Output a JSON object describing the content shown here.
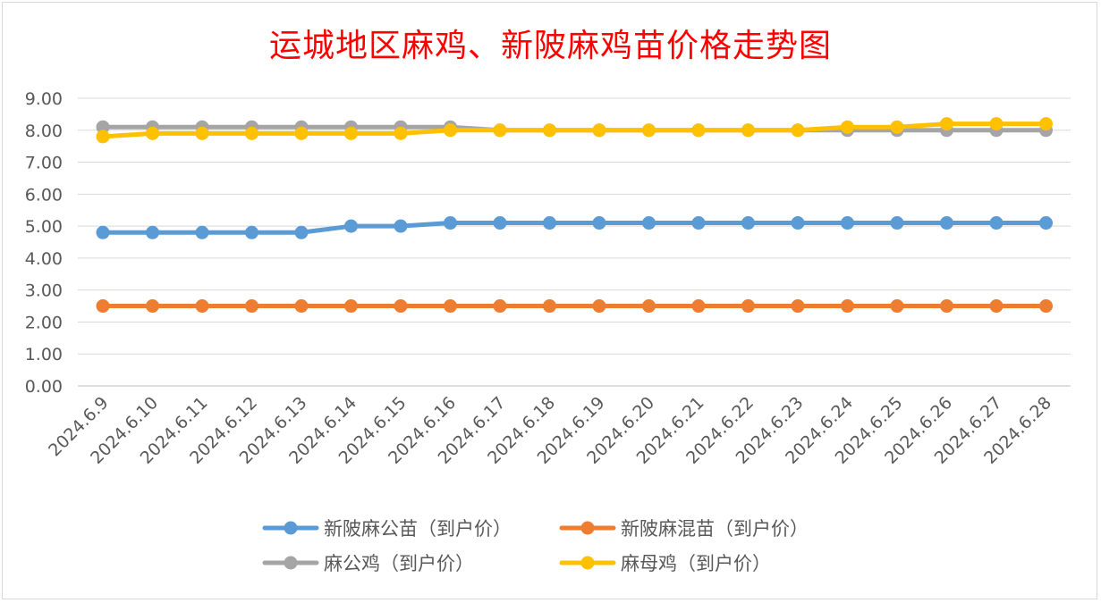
{
  "chart_data": {
    "type": "line",
    "title": "运城地区麻鸡、新陂麻鸡苗价格走势图",
    "xlabel": "",
    "ylabel": "",
    "ylim": [
      0,
      9
    ],
    "yticks": [
      "0.00",
      "1.00",
      "2.00",
      "3.00",
      "4.00",
      "5.00",
      "6.00",
      "7.00",
      "8.00",
      "9.00"
    ],
    "grid": true,
    "legend_position": "bottom",
    "categories": [
      "2024.6.9",
      "2024.6.10",
      "2024.6.11",
      "2024.6.12",
      "2024.6.13",
      "2024.6.14",
      "2024.6.15",
      "2024.6.16",
      "2024.6.17",
      "2024.6.18",
      "2024.6.19",
      "2024.6.20",
      "2024.6.21",
      "2024.6.22",
      "2024.6.23",
      "2024.6.24",
      "2024.6.25",
      "2024.6.26",
      "2024.6.27",
      "2024.6.28"
    ],
    "series": [
      {
        "name": "新陂麻公苗（到户价）",
        "color": "#5b9bd5",
        "values": [
          4.8,
          4.8,
          4.8,
          4.8,
          4.8,
          5.0,
          5.0,
          5.1,
          5.1,
          5.1,
          5.1,
          5.1,
          5.1,
          5.1,
          5.1,
          5.1,
          5.1,
          5.1,
          5.1,
          5.1
        ]
      },
      {
        "name": "新陂麻混苗（到户价）",
        "color": "#ed7d31",
        "values": [
          2.5,
          2.5,
          2.5,
          2.5,
          2.5,
          2.5,
          2.5,
          2.5,
          2.5,
          2.5,
          2.5,
          2.5,
          2.5,
          2.5,
          2.5,
          2.5,
          2.5,
          2.5,
          2.5,
          2.5
        ]
      },
      {
        "name": "麻公鸡（到户价）",
        "color": "#a5a5a5",
        "values": [
          8.1,
          8.1,
          8.1,
          8.1,
          8.1,
          8.1,
          8.1,
          8.1,
          8.0,
          8.0,
          8.0,
          8.0,
          8.0,
          8.0,
          8.0,
          8.0,
          8.0,
          8.0,
          8.0,
          8.0
        ]
      },
      {
        "name": "麻母鸡（到户价）",
        "color": "#ffc000",
        "values": [
          7.8,
          7.9,
          7.9,
          7.9,
          7.9,
          7.9,
          7.9,
          8.0,
          8.0,
          8.0,
          8.0,
          8.0,
          8.0,
          8.0,
          8.0,
          8.1,
          8.1,
          8.2,
          8.2,
          8.2
        ]
      }
    ]
  }
}
